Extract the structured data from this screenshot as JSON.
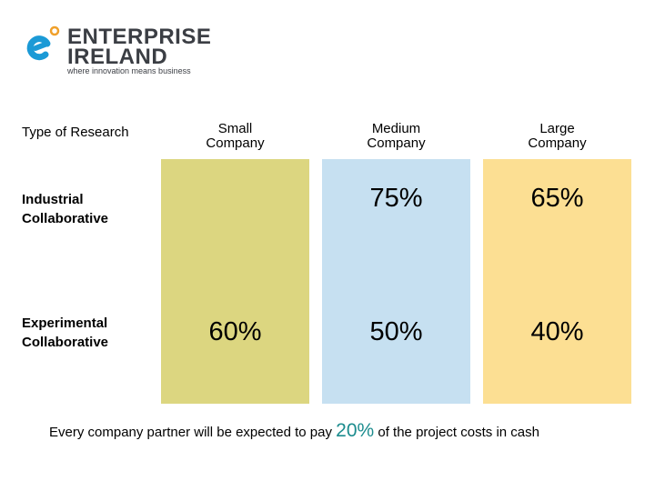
{
  "logo": {
    "line1": "ENTERPRISE",
    "line2": "IRELAND",
    "tagline": "where innovation means business",
    "colors": {
      "blue": "#1b9ad6",
      "orange": "#f0a02a",
      "text": "#3b3e44"
    }
  },
  "table": {
    "type_header": "Type of Research",
    "columns": [
      {
        "label": "Small Company",
        "color": "#dcd680"
      },
      {
        "label": "Medium Company",
        "color": "#c6e0f1"
      },
      {
        "label": "Large Company",
        "color": "#fcdf93"
      }
    ],
    "rows": [
      {
        "label": "Industrial Collaborative",
        "values": [
          "",
          "75%",
          "65%"
        ]
      },
      {
        "label": "Experimental Collaborative",
        "values": [
          "60%",
          "50%",
          "40%"
        ]
      }
    ]
  },
  "footer": {
    "prefix": "Every company partner will be expected to pay",
    "highlight": "20%",
    "suffix": "of the project costs in cash",
    "highlight_color": "#1c8c8e"
  }
}
